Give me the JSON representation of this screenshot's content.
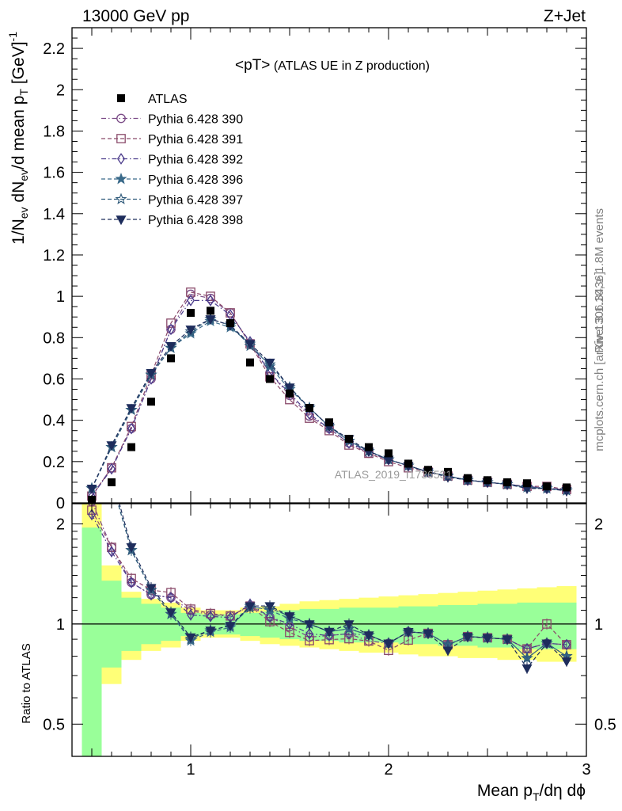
{
  "header": {
    "left": "13000 GeV pp",
    "right": "Z+Jet"
  },
  "side_labels": {
    "rivet": "Rivet 3.1.10, ≥ 1.8M events",
    "mcplots": "mcplots.cern.ch [arXiv:1306.3436]"
  },
  "watermark": "ATLAS_2019_I1736531",
  "chart_data": {
    "type": "scatter",
    "title_main": "<pT>",
    "title_sub": " (ATLAS UE in Z production)",
    "ylabel_upper": "1/N_ev dN_ev/d mean p_T [GeV]^-1",
    "ylabel_lower": "Ratio to ATLAS",
    "xlabel": "Mean p_T/dη dϕ",
    "xlim": [
      0.4,
      3.0
    ],
    "ylim_upper": [
      0,
      2.3
    ],
    "ylim_lower": [
      0.4,
      2.3
    ],
    "log_y_lower": true,
    "x_ticks": [
      "1",
      "2",
      "3"
    ],
    "y_ticks_upper": [
      "0",
      "0.2",
      "0.4",
      "0.6",
      "0.8",
      "1",
      "1.2",
      "1.4",
      "1.6",
      "1.8",
      "2",
      "2.2"
    ],
    "y_ticks_lower": [
      "0.5",
      "1",
      "2"
    ],
    "x": [
      0.5,
      0.6,
      0.7,
      0.8,
      0.9,
      1.0,
      1.1,
      1.2,
      1.3,
      1.4,
      1.5,
      1.6,
      1.7,
      1.8,
      1.9,
      2.0,
      2.1,
      2.2,
      2.3,
      2.4,
      2.5,
      2.6,
      2.7,
      2.8,
      2.9
    ],
    "data": {
      "name": "ATLAS",
      "values": [
        0.015,
        0.1,
        0.27,
        0.49,
        0.7,
        0.92,
        0.93,
        0.87,
        0.68,
        0.6,
        0.53,
        0.46,
        0.39,
        0.31,
        0.27,
        0.24,
        0.19,
        0.16,
        0.15,
        0.12,
        0.11,
        0.1,
        0.095,
        0.08,
        0.075
      ]
    },
    "band_inner": [
      1.95,
      1.35,
      1.2,
      1.15,
      1.12,
      1.08,
      1.07,
      1.07,
      1.08,
      1.09,
      1.1,
      1.11,
      1.11,
      1.12,
      1.12,
      1.12,
      1.13,
      1.13,
      1.14,
      1.14,
      1.15,
      1.15,
      1.16,
      1.16,
      1.16
    ],
    "band_inner_low": [
      0.35,
      0.74,
      0.83,
      0.87,
      0.89,
      0.92,
      0.93,
      0.93,
      0.92,
      0.91,
      0.9,
      0.89,
      0.89,
      0.88,
      0.88,
      0.88,
      0.87,
      0.87,
      0.86,
      0.86,
      0.85,
      0.85,
      0.84,
      0.84,
      0.84
    ],
    "band_outer": [
      2.3,
      1.5,
      1.25,
      1.19,
      1.16,
      1.12,
      1.1,
      1.1,
      1.12,
      1.13,
      1.15,
      1.17,
      1.18,
      1.19,
      1.2,
      1.21,
      1.22,
      1.23,
      1.24,
      1.25,
      1.26,
      1.27,
      1.28,
      1.29,
      1.3
    ],
    "band_outer_low": [
      0.35,
      0.66,
      0.78,
      0.83,
      0.85,
      0.89,
      0.91,
      0.91,
      0.89,
      0.87,
      0.86,
      0.85,
      0.84,
      0.83,
      0.82,
      0.82,
      0.81,
      0.8,
      0.8,
      0.79,
      0.79,
      0.78,
      0.78,
      0.77,
      0.77
    ],
    "colors": {
      "data": "#000000",
      "band_inner": "#99ff99",
      "band_outer": "#ffff77",
      "reference_line": "#000000"
    },
    "series": [
      {
        "name": "Pythia 6.428 390",
        "marker": "circle",
        "color": "#7a4a86",
        "dash": "dashdot",
        "values": [
          0.035,
          0.17,
          0.36,
          0.6,
          0.84,
          1.01,
          0.99,
          0.92,
          0.77,
          0.63,
          0.52,
          0.42,
          0.36,
          0.29,
          0.24,
          0.21,
          0.18,
          0.15,
          0.13,
          0.11,
          0.1,
          0.09,
          0.08,
          0.07,
          0.065
        ]
      },
      {
        "name": "Pythia 6.428 391",
        "marker": "square",
        "color": "#8a4a6a",
        "dash": "dash",
        "values": [
          0.033,
          0.17,
          0.37,
          0.62,
          0.87,
          1.02,
          1.0,
          0.92,
          0.77,
          0.61,
          0.5,
          0.41,
          0.35,
          0.28,
          0.24,
          0.2,
          0.17,
          0.15,
          0.13,
          0.11,
          0.1,
          0.09,
          0.08,
          0.08,
          0.065
        ]
      },
      {
        "name": "Pythia 6.428 392",
        "marker": "diamond",
        "color": "#4a3a8a",
        "dash": "dashdot",
        "values": [
          0.032,
          0.165,
          0.36,
          0.6,
          0.84,
          0.98,
          0.98,
          0.91,
          0.78,
          0.63,
          0.53,
          0.43,
          0.36,
          0.29,
          0.25,
          0.21,
          0.18,
          0.15,
          0.13,
          0.11,
          0.1,
          0.09,
          0.08,
          0.07,
          0.065
        ]
      },
      {
        "name": "Pythia 6.428 396",
        "marker": "star",
        "color": "#3a6a8a",
        "dash": "dash",
        "values": [
          0.07,
          0.27,
          0.45,
          0.62,
          0.75,
          0.82,
          0.88,
          0.85,
          0.77,
          0.66,
          0.55,
          0.46,
          0.37,
          0.3,
          0.25,
          0.21,
          0.18,
          0.15,
          0.13,
          0.11,
          0.1,
          0.09,
          0.075,
          0.07,
          0.06
        ]
      },
      {
        "name": "Pythia 6.428 397",
        "marker": "star-open",
        "color": "#2f5a7a",
        "dash": "dash",
        "values": [
          0.07,
          0.27,
          0.45,
          0.62,
          0.75,
          0.83,
          0.89,
          0.86,
          0.76,
          0.67,
          0.56,
          0.46,
          0.37,
          0.3,
          0.25,
          0.21,
          0.18,
          0.15,
          0.13,
          0.11,
          0.1,
          0.09,
          0.075,
          0.07,
          0.06
        ]
      },
      {
        "name": "Pythia 6.428 398",
        "marker": "triangle-down",
        "color": "#1e2d5c",
        "dash": "dash",
        "values": [
          0.07,
          0.28,
          0.46,
          0.63,
          0.76,
          0.84,
          0.89,
          0.86,
          0.77,
          0.68,
          0.56,
          0.46,
          0.37,
          0.31,
          0.25,
          0.21,
          0.18,
          0.15,
          0.125,
          0.11,
          0.1,
          0.09,
          0.07,
          0.07,
          0.058
        ]
      }
    ]
  }
}
